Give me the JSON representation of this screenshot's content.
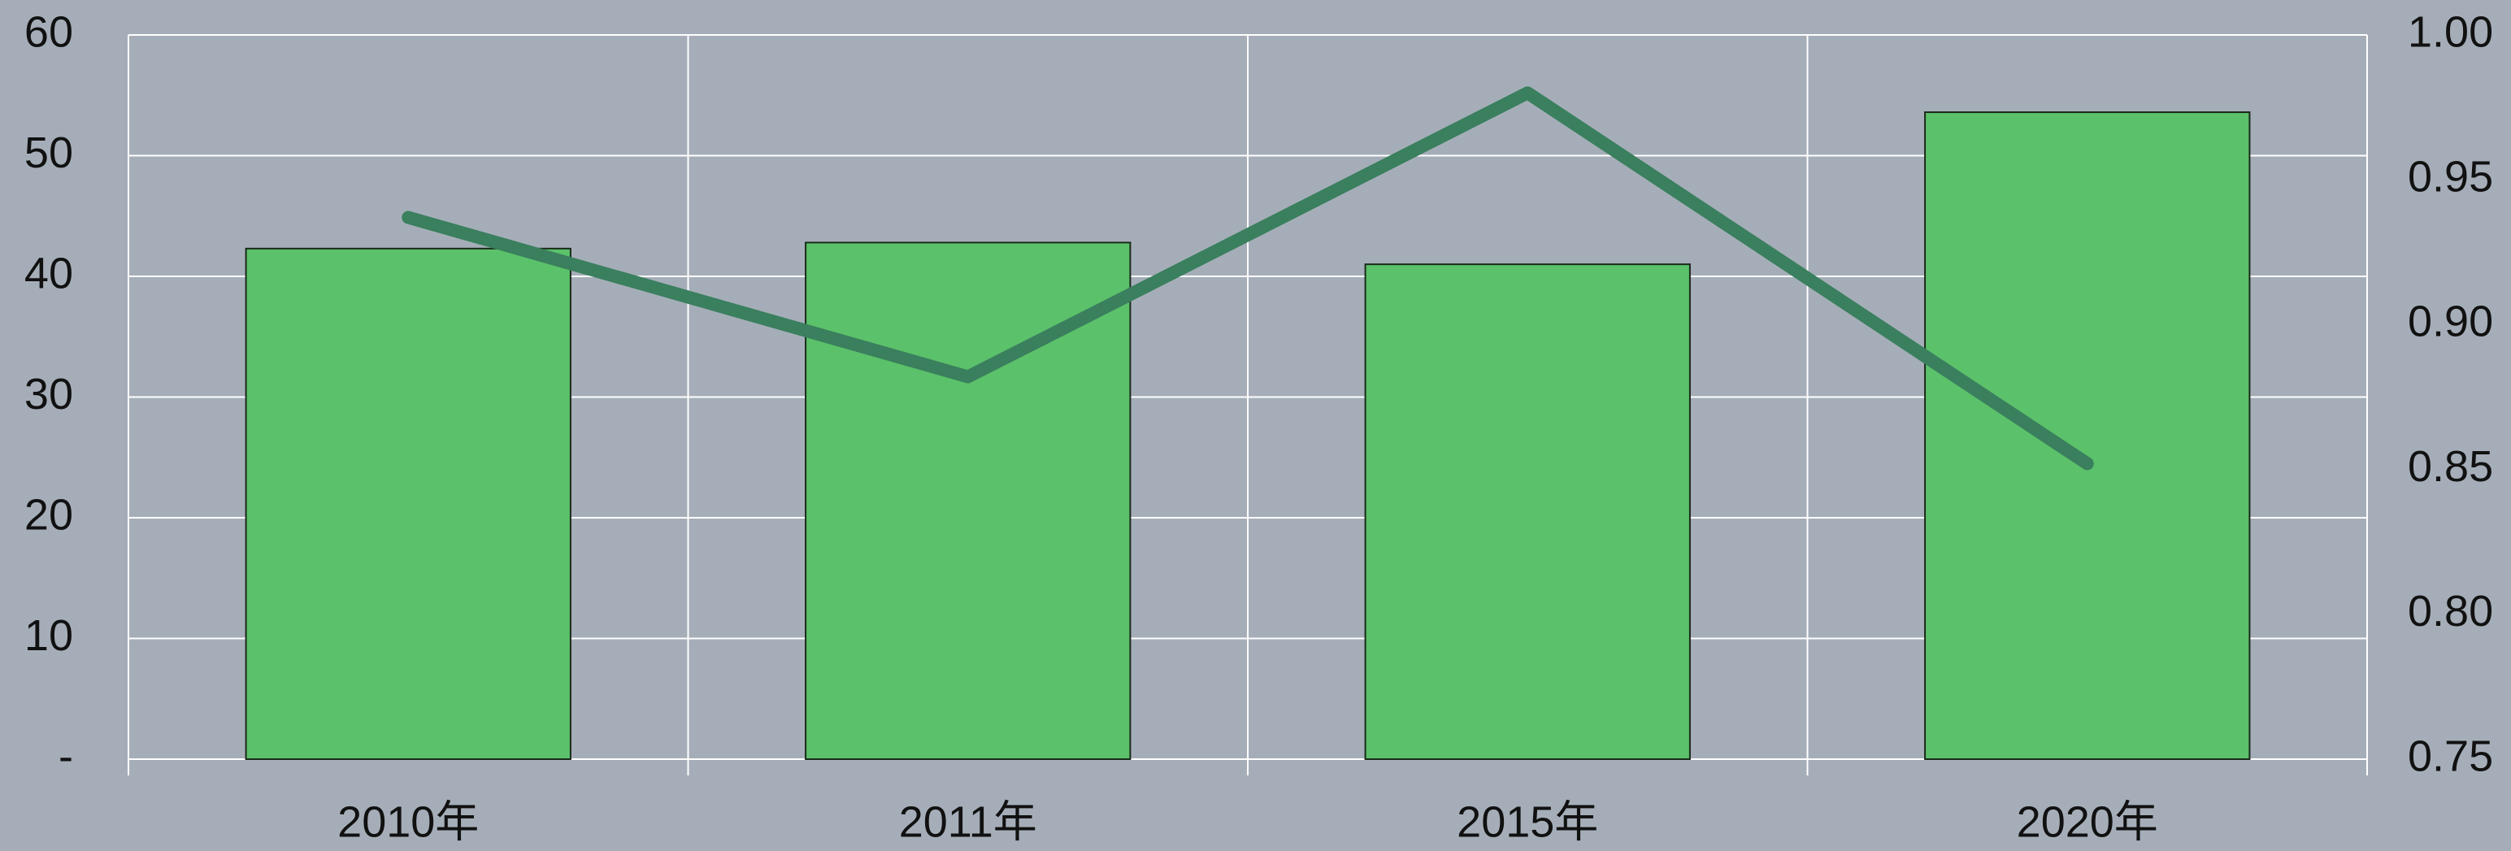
{
  "chart_data": {
    "type": "bar",
    "categories": [
      "2010年",
      "2011年",
      "2015年",
      "2020年"
    ],
    "series": [
      {
        "type": "bar",
        "color": "#5bc16a",
        "values": [
          42.3,
          42.8,
          41.0,
          53.6
        ]
      },
      {
        "type": "line",
        "axis": "y2",
        "color": "#3a7f5e",
        "values": [
          0.937,
          0.882,
          0.98,
          0.852
        ]
      }
    ],
    "ylim": [
      0,
      60
    ],
    "yticks": [
      {
        "value": 0,
        "label": "-"
      },
      10,
      20,
      30,
      40,
      50,
      60
    ],
    "y2lim": [
      0.75,
      1.0
    ],
    "y2ticks": [
      {
        "value": 0.75,
        "label": "0.75"
      },
      {
        "value": 0.8,
        "label": "0.80"
      },
      {
        "value": 0.85,
        "label": "0.85"
      },
      {
        "value": 0.9,
        "label": "0.90"
      },
      {
        "value": 0.95,
        "label": "0.95"
      },
      {
        "value": 1.0,
        "label": "1.00"
      }
    ],
    "grid": true
  }
}
